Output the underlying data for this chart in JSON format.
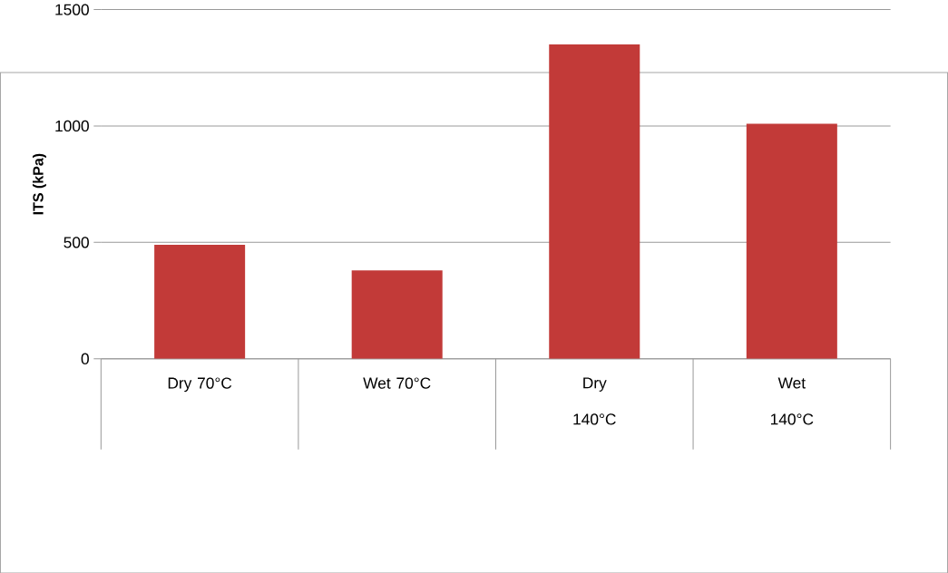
{
  "chart_data": {
    "type": "bar",
    "ylabel": "ITS (kPa)",
    "categories": [
      "Dry 70°C",
      "Wet 70°C",
      "Dry 140°C",
      "Wet 140°C"
    ],
    "values": [
      490,
      380,
      1350,
      1010
    ],
    "color": "#c23a38",
    "ylim": [
      0,
      1500
    ],
    "yticks": [
      0,
      500,
      1000,
      1500
    ],
    "grid": "y"
  }
}
